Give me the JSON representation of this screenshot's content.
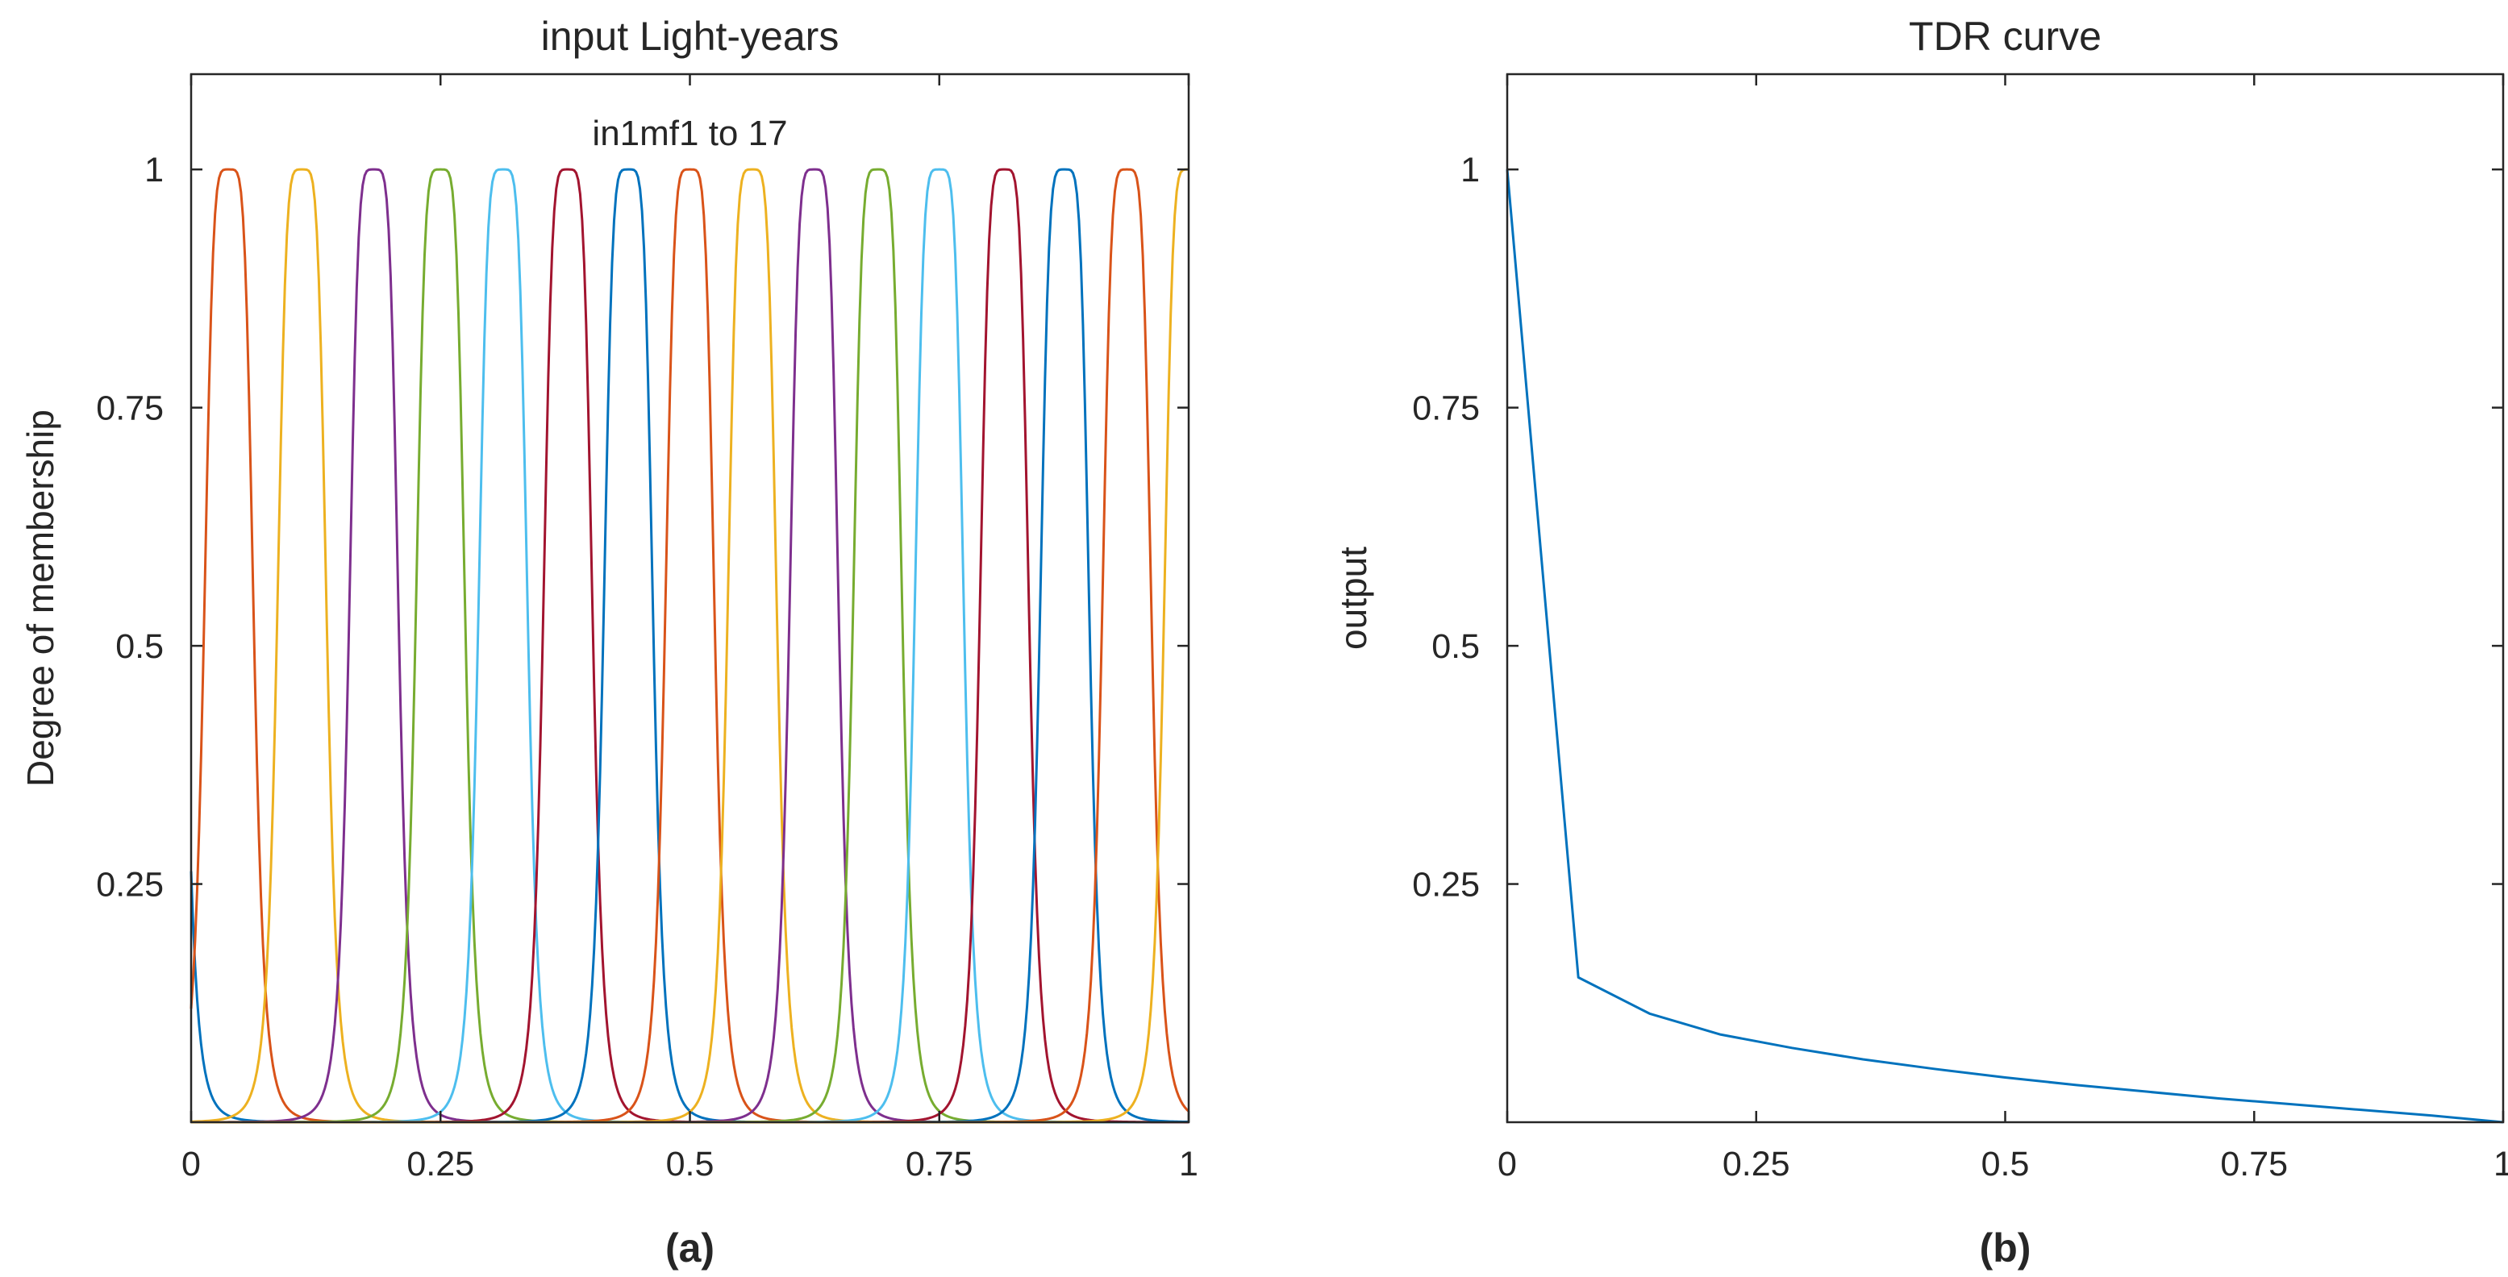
{
  "chart_data": [
    {
      "type": "line",
      "title": "input Light-years",
      "xlabel": "",
      "ylabel": "Degree of membership",
      "panel_label": "(a)",
      "annotation": "in1mf1 to 17",
      "xlim": [
        0,
        1
      ],
      "ylim": [
        0,
        1.1
      ],
      "xticks": [
        0,
        0.25,
        0.5,
        0.75,
        1
      ],
      "xtick_labels": [
        "0",
        "0.25",
        "0.5",
        "0.75",
        "1"
      ],
      "yticks": [
        0.25,
        0.5,
        0.75,
        1
      ],
      "ytick_labels": [
        "0.25",
        "0.5",
        "0.75",
        "1"
      ],
      "series_kind": "generalized_bell_membership_functions",
      "series": [
        {
          "name": "in1mf1",
          "center": -0.0312,
          "a": 0.0254,
          "b": 2.5,
          "color": "#0072BD"
        },
        {
          "name": "in1mf2",
          "center": 0.0379,
          "a": 0.0254,
          "b": 2.5,
          "color": "#D95319"
        },
        {
          "name": "in1mf3",
          "center": 0.1111,
          "a": 0.0254,
          "b": 2.5,
          "color": "#EDB120"
        },
        {
          "name": "in1mf4",
          "center": 0.1832,
          "a": 0.0254,
          "b": 2.5,
          "color": "#7E2F8E"
        },
        {
          "name": "in1mf5",
          "center": 0.25,
          "a": 0.0254,
          "b": 2.5,
          "color": "#77AC30"
        },
        {
          "name": "in1mf6",
          "center": 0.3127,
          "a": 0.0254,
          "b": 2.5,
          "color": "#4DBEEE"
        },
        {
          "name": "in1mf7",
          "center": 0.3777,
          "a": 0.0254,
          "b": 2.5,
          "color": "#A2142F"
        },
        {
          "name": "in1mf8",
          "center": 0.4383,
          "a": 0.0254,
          "b": 2.5,
          "color": "#0072BD"
        },
        {
          "name": "in1mf9",
          "center": 0.5,
          "a": 0.0254,
          "b": 2.5,
          "color": "#D95319"
        },
        {
          "name": "in1mf10",
          "center": 0.5625,
          "a": 0.0254,
          "b": 2.5,
          "color": "#EDB120"
        },
        {
          "name": "in1mf11",
          "center": 0.6245,
          "a": 0.0254,
          "b": 2.5,
          "color": "#7E2F8E"
        },
        {
          "name": "in1mf12",
          "center": 0.6882,
          "a": 0.0254,
          "b": 2.5,
          "color": "#77AC30"
        },
        {
          "name": "in1mf13",
          "center": 0.75,
          "a": 0.0254,
          "b": 2.5,
          "color": "#4DBEEE"
        },
        {
          "name": "in1mf14",
          "center": 0.8153,
          "a": 0.0254,
          "b": 2.5,
          "color": "#A2142F"
        },
        {
          "name": "in1mf15",
          "center": 0.8757,
          "a": 0.0254,
          "b": 2.5,
          "color": "#0072BD"
        },
        {
          "name": "in1mf16",
          "center": 0.938,
          "a": 0.0254,
          "b": 2.5,
          "color": "#D95319"
        },
        {
          "name": "in1mf17",
          "center": 1.0,
          "a": 0.0254,
          "b": 2.5,
          "color": "#EDB120"
        }
      ]
    },
    {
      "type": "line",
      "title": "TDR curve",
      "xlabel": "",
      "ylabel": "output",
      "panel_label": "(b)",
      "xlim": [
        0,
        1
      ],
      "ylim": [
        0,
        1.1
      ],
      "xticks": [
        0,
        0.25,
        0.5,
        0.75,
        1
      ],
      "xtick_labels": [
        "0",
        "0.25",
        "0.5",
        "0.75",
        "1"
      ],
      "yticks": [
        0.25,
        0.5,
        0.75,
        1
      ],
      "ytick_labels": [
        "0.25",
        "0.5",
        "0.75",
        "1"
      ],
      "series": [
        {
          "name": "TDR curve",
          "color": "#0072BD",
          "x": [
            0,
            0.0714,
            0.1429,
            0.2143,
            0.2857,
            0.3571,
            0.4286,
            0.5,
            0.5714,
            0.6429,
            0.7143,
            0.7857,
            0.8571,
            0.9286,
            1.0
          ],
          "y": [
            1.0,
            0.152,
            0.114,
            0.092,
            0.078,
            0.066,
            0.056,
            0.047,
            0.039,
            0.032,
            0.025,
            0.019,
            0.013,
            0.007,
            0.0
          ]
        }
      ]
    }
  ]
}
